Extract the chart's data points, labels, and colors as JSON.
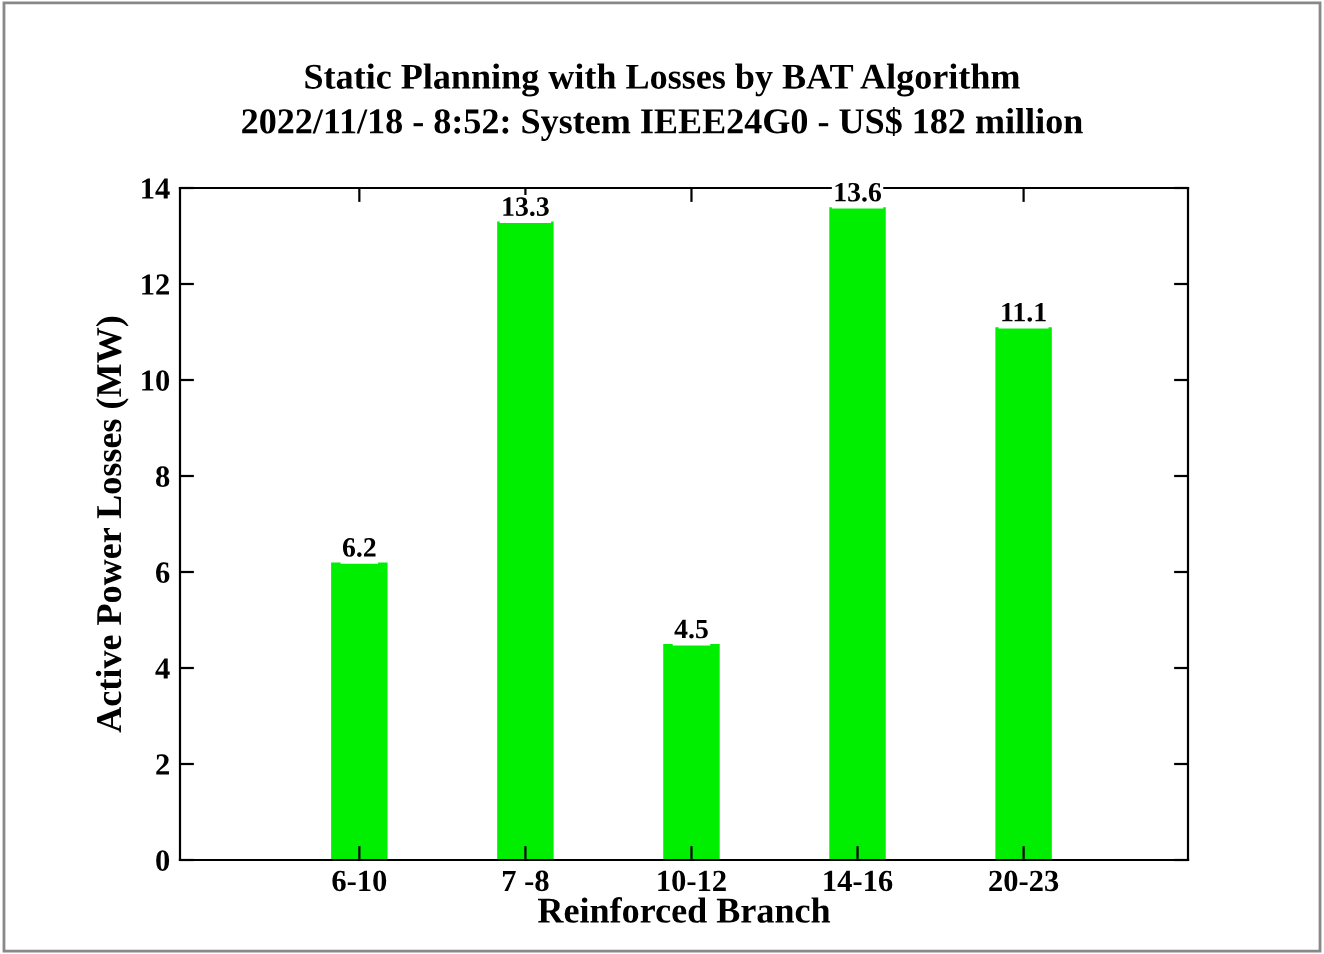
{
  "chart_data": {
    "type": "bar",
    "title": "Static Planning with Losses by BAT Algorithm",
    "subtitle": "2022/11/18 - 8:52: System IEEE24G0 - US$ 182 million",
    "xlabel": "Reinforced Branch",
    "ylabel": "Active Power Losses (MW)",
    "categories": [
      "6-10",
      "7 -8",
      "10-12",
      "14-16",
      "20-23"
    ],
    "values": [
      6.2,
      13.3,
      4.5,
      13.6,
      11.1
    ],
    "color": "#00ee00",
    "ylim": [
      0,
      14
    ],
    "yticks": [
      0,
      2,
      4,
      6,
      8,
      10,
      12,
      14
    ],
    "data_labels": true,
    "grid": false,
    "legend": false
  }
}
